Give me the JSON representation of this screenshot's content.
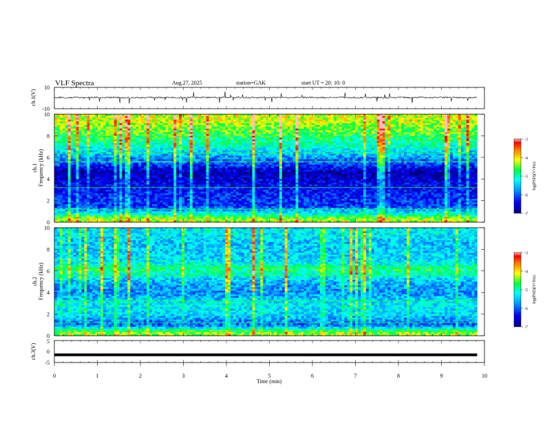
{
  "header": {
    "title": "VLF  Spectra",
    "date": "Aug.27, 2025",
    "station": "station=GAK",
    "start_ut": "start  UT  =    20: 10: 0"
  },
  "chart_data": [
    {
      "type": "line",
      "panel": "ch1-waveform",
      "ylabel": "ch.1(V)",
      "ylim": [
        -10,
        10
      ],
      "yticks": [
        "10",
        "-10"
      ],
      "x_range_min": [
        0,
        9.83
      ],
      "baseline_v": 0.5,
      "color": "#000000"
    },
    {
      "type": "heatmap",
      "panel": "ch1-spectrogram",
      "ylabel": "ch.1\nFrequency (kHz)",
      "ylim": [
        0,
        10
      ],
      "yticks": [
        "0",
        "2",
        "4",
        "6",
        "8",
        "10"
      ],
      "x_range_min": [
        0,
        9.83
      ],
      "band_profile_log_psd": [
        {
          "f_khz": 0.3,
          "v": -4.3
        },
        {
          "f_khz": 0.8,
          "v": -5.2
        },
        {
          "f_khz": 1.5,
          "v": -6.2
        },
        {
          "f_khz": 2.5,
          "v": -6.3
        },
        {
          "f_khz": 3.6,
          "v": -6.5
        },
        {
          "f_khz": 4.6,
          "v": -6.8
        },
        {
          "f_khz": 5.4,
          "v": -6.1
        },
        {
          "f_khz": 6.2,
          "v": -5.6
        },
        {
          "f_khz": 7.2,
          "v": -5.0
        },
        {
          "f_khz": 8.5,
          "v": -4.5
        },
        {
          "f_khz": 9.6,
          "v": -4.2
        }
      ],
      "colorbar": {
        "label": "log(PSD)(V²/Hz)",
        "range": [
          -7,
          -3
        ],
        "ticks": [
          "-3",
          "-4",
          "-5",
          "-6",
          "-7"
        ]
      }
    },
    {
      "type": "heatmap",
      "panel": "ch2-spectrogram",
      "ylabel": "ch.2\nFrequency (kHz)",
      "ylim": [
        0,
        10
      ],
      "yticks": [
        "0",
        "2",
        "4",
        "6",
        "8",
        "10"
      ],
      "x_range_min": [
        0,
        9.83
      ],
      "band_profile_log_psd": [
        {
          "f_khz": 0.3,
          "v": -4.4
        },
        {
          "f_khz": 1.0,
          "v": -6.0
        },
        {
          "f_khz": 2.0,
          "v": -5.4
        },
        {
          "f_khz": 3.0,
          "v": -5.3
        },
        {
          "f_khz": 4.0,
          "v": -5.8
        },
        {
          "f_khz": 5.0,
          "v": -5.6
        },
        {
          "f_khz": 6.1,
          "v": -4.8
        },
        {
          "f_khz": 7.0,
          "v": -5.4
        },
        {
          "f_khz": 8.5,
          "v": -5.5
        },
        {
          "f_khz": 9.6,
          "v": -5.3
        }
      ],
      "colorbar": {
        "label": "log(PSD)(V²/Hz)",
        "range": [
          -7,
          -3
        ],
        "ticks": [
          "-3",
          "-4",
          "-5",
          "-6",
          "-7"
        ]
      }
    },
    {
      "type": "line",
      "panel": "ch3-waveform",
      "ylabel": "ch.3(V)",
      "ylim": [
        -5,
        5
      ],
      "yticks": [
        "5",
        "0",
        "-5"
      ],
      "x_range_min": [
        0,
        9.83
      ],
      "baseline_v": -1.5,
      "color": "#000000"
    }
  ],
  "xaxis": {
    "label": "Time  (min)",
    "range": [
      0,
      10
    ],
    "ticks": [
      "0",
      "1",
      "2",
      "3",
      "4",
      "5",
      "6",
      "7",
      "8",
      "9",
      "10"
    ]
  }
}
